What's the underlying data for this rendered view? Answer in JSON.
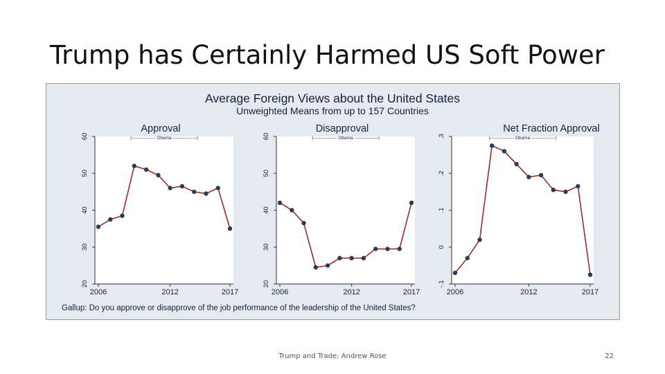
{
  "slide": {
    "title": "Trump has Certainly Harmed US Soft Power",
    "footer": "Trump and Trade: Andrew Rose",
    "page_number": "22"
  },
  "figure": {
    "title": "Average Foreign Views about the United States",
    "subtitle": "Unweighted Means from up to 157 Countries",
    "caption": "Gallup: Do you approve or disapprove of the job performance of the leadership of the United States?",
    "colors": {
      "background": "#e3ebf1",
      "plot_background": "#ffffff",
      "line": "#a02828",
      "marker": "#2e3a5c",
      "text": "#1a1f3a"
    }
  },
  "chart_data": [
    {
      "type": "line",
      "title": "Approval",
      "annotation": "|---------------- Obama ----------------|",
      "x": [
        2006,
        2007,
        2008,
        2009,
        2010,
        2011,
        2012,
        2013,
        2014,
        2015,
        2016,
        2017
      ],
      "values": [
        35.5,
        37.5,
        38.5,
        52,
        51,
        49.5,
        46,
        46.5,
        45,
        44.5,
        46,
        35
      ],
      "xticks": [
        "2006",
        "2012",
        "2017"
      ],
      "yticks": [
        "20",
        "30",
        "40",
        "50",
        "60"
      ],
      "xlim": [
        2006,
        2017
      ],
      "ylim": [
        20,
        60
      ],
      "grid": false
    },
    {
      "type": "line",
      "title": "Disapproval",
      "annotation": "|---------------- Obama ----------------|",
      "x": [
        2006,
        2007,
        2008,
        2009,
        2010,
        2011,
        2012,
        2013,
        2014,
        2015,
        2016,
        2017
      ],
      "values": [
        42,
        40,
        36.5,
        24.5,
        25,
        27,
        27,
        27,
        29.5,
        29.5,
        29.5,
        42
      ],
      "xticks": [
        "2006",
        "2012",
        "2017"
      ],
      "yticks": [
        "20",
        "30",
        "40",
        "50",
        "60"
      ],
      "xlim": [
        2006,
        2017
      ],
      "ylim": [
        20,
        60
      ],
      "grid": false
    },
    {
      "type": "line",
      "title": "Net Fraction Approval",
      "annotation": "|---------------- Obama ----------------|",
      "x": [
        2006,
        2007,
        2008,
        2009,
        2010,
        2011,
        2012,
        2013,
        2014,
        2015,
        2016,
        2017
      ],
      "values": [
        -0.07,
        -0.03,
        0.02,
        0.275,
        0.26,
        0.225,
        0.19,
        0.195,
        0.155,
        0.15,
        0.165,
        -0.075
      ],
      "xticks": [
        "2006",
        "2012",
        "2017"
      ],
      "yticks": [
        "-.1",
        "0",
        ".1",
        ".2",
        ".3"
      ],
      "xlim": [
        2006,
        2017
      ],
      "ylim": [
        -0.1,
        0.3
      ],
      "grid": false
    }
  ]
}
